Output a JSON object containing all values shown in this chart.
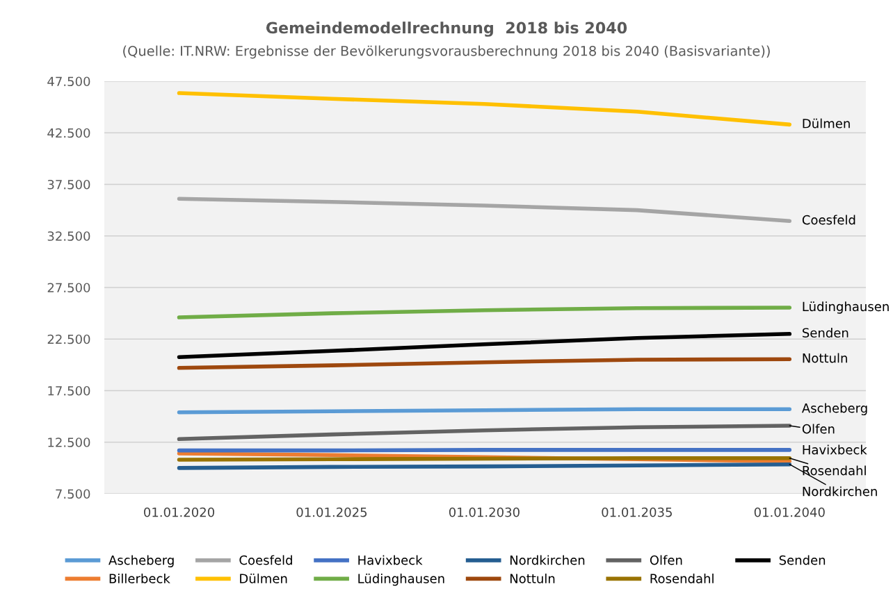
{
  "chart_data": {
    "type": "line",
    "title": "Gemeindemodellrechnung  2018 bis 2040",
    "subtitle": "(Quelle: IT.NRW: Ergebnisse der Bevölkerungsvorausberechnung 2018 bis 2040 (Basisvariante))",
    "categories": [
      "01.01.2020",
      "01.01.2025",
      "01.01.2030",
      "01.01.2035",
      "01.01.2040"
    ],
    "series": [
      {
        "name": "Ascheberg",
        "color": "#5b9bd5",
        "values": [
          15400,
          15500,
          15600,
          15700,
          15700
        ]
      },
      {
        "name": "Billerbeck",
        "color": "#ed7d31",
        "values": [
          11400,
          11250,
          11050,
          10850,
          10650
        ]
      },
      {
        "name": "Coesfeld",
        "color": "#a5a5a5",
        "values": [
          36100,
          35800,
          35450,
          35000,
          33950
        ]
      },
      {
        "name": "Dülmen",
        "color": "#ffc000",
        "values": [
          46350,
          45800,
          45300,
          44550,
          43300
        ]
      },
      {
        "name": "Havixbeck",
        "color": "#4472c4",
        "values": [
          11700,
          11700,
          11750,
          11750,
          11750
        ]
      },
      {
        "name": "Lüdinghausen",
        "color": "#70ad47",
        "values": [
          24600,
          25000,
          25300,
          25500,
          25550
        ]
      },
      {
        "name": "Nordkirchen",
        "color": "#255e91",
        "values": [
          10000,
          10100,
          10150,
          10250,
          10350
        ]
      },
      {
        "name": "Nottuln",
        "color": "#9e480e",
        "values": [
          19700,
          19950,
          20250,
          20500,
          20550
        ]
      },
      {
        "name": "Olfen",
        "color": "#636363",
        "values": [
          12800,
          13250,
          13650,
          13950,
          14100
        ]
      },
      {
        "name": "Rosendahl",
        "color": "#997300",
        "values": [
          10800,
          10850,
          10900,
          10950,
          10950
        ]
      },
      {
        "name": "Senden",
        "color": "#000000",
        "values": [
          20750,
          21350,
          22000,
          22600,
          23000
        ]
      }
    ],
    "annotations": [
      {
        "text": "Dülmen",
        "x": "01.01.2040",
        "y": 43300
      },
      {
        "text": "Coesfeld",
        "x": "01.01.2040",
        "y": 33950
      },
      {
        "text": "Lüdinghausen",
        "x": "01.01.2040",
        "y": 25550
      },
      {
        "text": "Senden",
        "x": "01.01.2040",
        "y": 23000
      },
      {
        "text": "Nottuln",
        "x": "01.01.2040",
        "y": 20550
      },
      {
        "text": "Ascheberg",
        "x": "01.01.2040",
        "y": 15700
      },
      {
        "text": "Olfen",
        "x": "01.01.2040",
        "y": 14100
      },
      {
        "text": "Havixbeck",
        "x": "01.01.2040",
        "y": 11750
      },
      {
        "text": "Rosendahl",
        "x": "01.01.2040",
        "y": 10950
      },
      {
        "text": "Nordkirchen",
        "x": "01.01.2040",
        "y": 10350
      }
    ],
    "ylim": [
      7500,
      47500
    ],
    "yticks": [
      {
        "value": 7500,
        "label": "7.500"
      },
      {
        "value": 12500,
        "label": "12.500"
      },
      {
        "value": 17500,
        "label": "17.500"
      },
      {
        "value": 22500,
        "label": "22.500"
      },
      {
        "value": 27500,
        "label": "27.500"
      },
      {
        "value": 32500,
        "label": "32.500"
      },
      {
        "value": 37500,
        "label": "37.500"
      },
      {
        "value": 42500,
        "label": "42.500"
      },
      {
        "value": 47500,
        "label": "47.500"
      }
    ],
    "grid": "y",
    "legend": "bottom",
    "marker": "none",
    "line_style": "solid"
  }
}
